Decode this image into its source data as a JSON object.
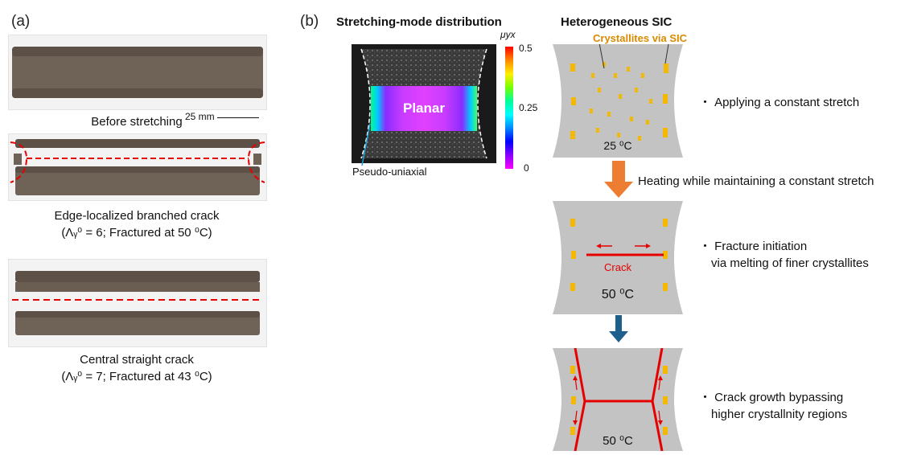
{
  "panel_a": {
    "label": "(a)",
    "scale_bar": "25 mm",
    "caption_before": "Before stretching",
    "caption_edge": "Edge-localized branched crack",
    "caption_edge_params": "(Λᵧ⁰ = 6; Fractured at 50 ⁰C)",
    "caption_central": "Central straight crack",
    "caption_central_params": "(Λᵧ⁰ = 7; Fractured at 43 ⁰C)"
  },
  "panel_b": {
    "label": "(b)",
    "title_left": "Stretching-mode distribution",
    "title_right": "Heterogeneous SIC",
    "planar_label": "Planar",
    "pseudo_label": "Pseudo-uniaxial",
    "colorbar": {
      "symbol": "μyx",
      "ticks": [
        "0.5",
        "0.25",
        "0"
      ],
      "colors": [
        "#ff0000",
        "#ffaa00",
        "#ffff00",
        "#66ff00",
        "#00ff88",
        "#00ffff",
        "#0077ff",
        "#0000ff",
        "#8800ff",
        "#ff00ff"
      ]
    },
    "crystallites_label": "Crystallites via SIC",
    "temp_1": "25 ⁰C",
    "temp_2": "50 ⁰C",
    "temp_3": "50 ⁰C",
    "crack_label": "Crack",
    "note_1": "・ Applying a constant stretch",
    "note_2_line1": "・ Fracture initiation",
    "note_2_line2": "via melting of finer crystallites",
    "note_3_line1": "・ Crack growth bypassing",
    "note_3_line2": "higher crystallnity regions",
    "arrow_label": "Heating while maintaining a constant stretch",
    "colors": {
      "crystallite": "#f5b800",
      "crack": "#e60000",
      "arrow_orange": "#ed7d31",
      "arrow_blue": "#1f5f8b",
      "sample_grey": "#c3c3c3"
    }
  }
}
